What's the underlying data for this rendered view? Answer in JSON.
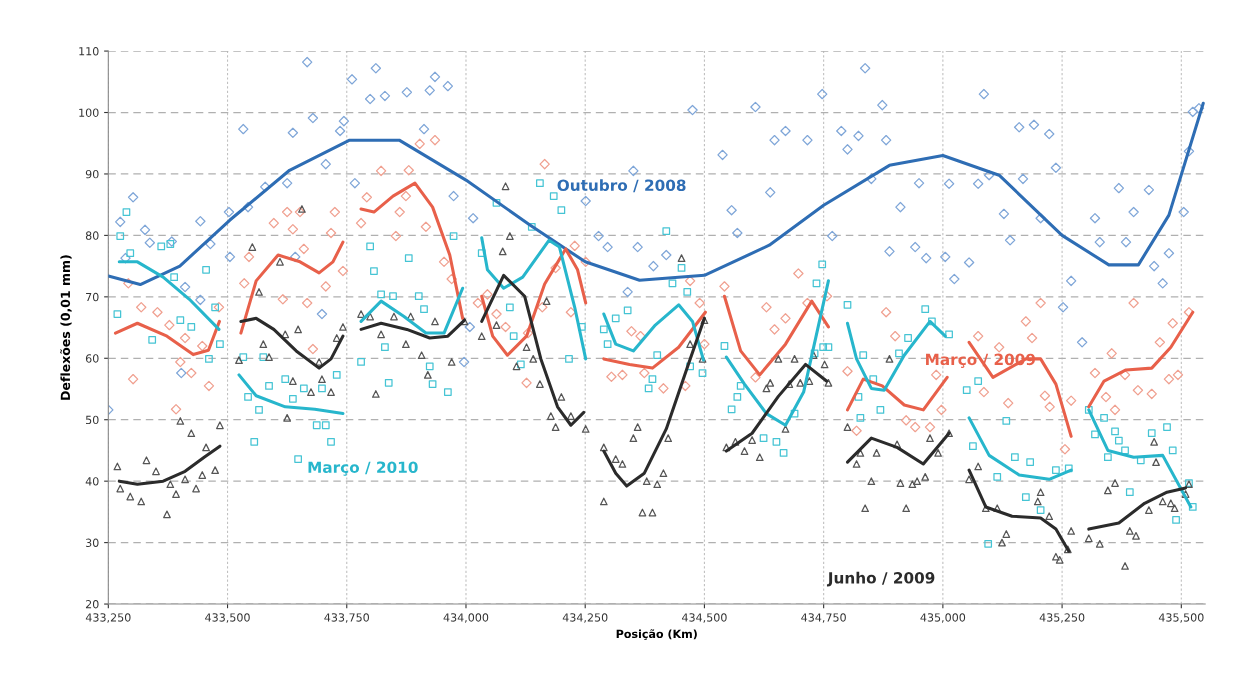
{
  "chart_data": {
    "type": "scatter",
    "xlabel": "Posição (Km)",
    "ylabel": "Deflexões (0,01 mm)",
    "xlim": [
      433250,
      435550
    ],
    "ylim": [
      20,
      110
    ],
    "xticks": [
      {
        "value": 433250,
        "label": "433,250"
      },
      {
        "value": 433500,
        "label": "433,500"
      },
      {
        "value": 433750,
        "label": "433,750"
      },
      {
        "value": 434000,
        "label": "434,000"
      },
      {
        "value": 434250,
        "label": "434,250"
      },
      {
        "value": 434500,
        "label": "434,500"
      },
      {
        "value": 434750,
        "label": "434,750"
      },
      {
        "value": 435000,
        "label": "435,000"
      },
      {
        "value": 435250,
        "label": "435,250"
      },
      {
        "value": 435500,
        "label": "435,500"
      }
    ],
    "yticks": [
      20,
      30,
      40,
      50,
      60,
      70,
      80,
      90,
      100,
      110
    ],
    "grid": true,
    "series": [
      {
        "marker": "diamond",
        "color": "#7fa6d8",
        "x": [
          433250,
          433275,
          433286,
          433302,
          433327,
          433337,
          433383,
          433411,
          433443,
          433464,
          433503,
          433533,
          433543,
          433505,
          433443,
          433403,
          433579,
          433625,
          433637,
          433642,
          433667,
          433679,
          433698,
          433706,
          433736,
          433744,
          433761,
          433767,
          433799,
          433811,
          433830,
          433876,
          433912,
          433924,
          433935,
          433962,
          433974,
          434008,
          434015,
          433996,
          434251,
          434278,
          434297,
          434339,
          434351,
          434360,
          434393,
          434420,
          434475,
          434538,
          434557,
          434569,
          434607,
          434638,
          434647,
          434670,
          434716,
          434747,
          434768,
          434787,
          434800,
          434823,
          434837,
          434850,
          434873,
          434881,
          434888,
          434911,
          434942,
          434950,
          434965,
          435005,
          435013,
          435024,
          435055,
          435074,
          435086,
          435097,
          435128,
          435141,
          435160,
          435168,
          435191,
          435205,
          435223,
          435237,
          435252,
          435269,
          435292,
          435319,
          435329,
          435369,
          435384,
          435400,
          435432,
          435443,
          435461,
          435474,
          435505,
          435516,
          435524,
          435537
        ],
        "values": [
          51.6,
          82.2,
          76.3,
          86.2,
          80.9,
          78.8,
          79,
          71.6,
          69.5,
          78.6,
          83.8,
          97.3,
          84.6,
          76.5,
          82.3,
          57.6,
          87.9,
          88.5,
          96.7,
          76.5,
          108.2,
          99.1,
          67.2,
          91.6,
          97,
          98.6,
          105.4,
          88.5,
          102.2,
          107.2,
          102.7,
          103.3,
          97.3,
          103.6,
          105.8,
          104.3,
          86.4,
          65.1,
          82.8,
          59.4,
          85.6,
          79.9,
          78.1,
          70.8,
          90.5,
          78.1,
          75,
          76.8,
          100.4,
          93.1,
          84.1,
          80.4,
          100.9,
          87,
          95.5,
          97,
          95.5,
          103,
          79.9,
          97,
          94,
          96.2,
          107.2,
          89.2,
          101.2,
          95.5,
          77.4,
          84.6,
          78.1,
          88.5,
          76.3,
          76.5,
          88.4,
          72.9,
          75.6,
          88.4,
          103,
          89.8,
          83.5,
          79.2,
          97.6,
          89.2,
          98,
          82.8,
          96.5,
          91,
          68.3,
          72.6,
          62.6,
          82.8,
          78.9,
          87.7,
          78.9,
          83.8,
          87.4,
          75,
          72.2,
          77.1,
          83.8,
          93.7,
          100.1,
          100.7
        ]
      },
      {
        "marker": "diamond",
        "color": "#f0a090",
        "x": [
          433292,
          433319,
          433353,
          433378,
          433302,
          433401,
          433424,
          433411,
          433447,
          433461,
          433392,
          433482,
          433535,
          433545,
          433597,
          433625,
          433652,
          433637,
          433660,
          433725,
          433717,
          433742,
          433706,
          433667,
          433616,
          433679,
          433780,
          433792,
          433822,
          433853,
          433861,
          433874,
          433880,
          433903,
          433935,
          433916,
          433954,
          433970,
          434025,
          434165,
          434228,
          434251,
          434188,
          434220,
          434160,
          434064,
          434045,
          434130,
          434083,
          434127,
          434305,
          434328,
          434347,
          434366,
          434374,
          434414,
          434460,
          434470,
          434490,
          434500,
          434542,
          434647,
          434670,
          434697,
          434716,
          434757,
          434607,
          434630,
          434800,
          434819,
          434881,
          434900,
          434923,
          434942,
          434973,
          434997,
          434986,
          435074,
          435118,
          435086,
          435137,
          435174,
          435187,
          435205,
          435214,
          435224,
          435269,
          435256,
          435319,
          435342,
          435361,
          435400,
          435354,
          435382,
          435409,
          435438,
          435455,
          435482,
          435474,
          435493,
          435516
        ],
        "values": [
          72.2,
          68.3,
          67.5,
          65.4,
          56.6,
          59.4,
          57.6,
          63.3,
          62,
          55.5,
          51.7,
          68.3,
          72.2,
          76.5,
          82,
          83.8,
          83.8,
          81,
          77.8,
          83.8,
          80.4,
          74.2,
          71.7,
          69,
          69.6,
          61.5,
          82,
          86.2,
          90.5,
          79.9,
          83.8,
          86.4,
          90.6,
          94.9,
          95.5,
          81.4,
          75.7,
          72.9,
          69,
          91.6,
          78.3,
          75.7,
          74.7,
          67.5,
          68.3,
          67.2,
          70.4,
          64.1,
          65.1,
          56,
          57,
          57.3,
          64.4,
          63.6,
          57.6,
          55.1,
          55.5,
          72.6,
          69,
          62.3,
          71.7,
          64.7,
          66.5,
          73.8,
          69,
          70.1,
          56.9,
          68.3,
          57.9,
          48.2,
          67.5,
          63.6,
          49.9,
          48.8,
          48.8,
          51.6,
          57.3,
          63.6,
          61.8,
          54.5,
          52.7,
          66,
          63.3,
          69,
          53.9,
          52.1,
          53.1,
          45.2,
          57.6,
          53.7,
          51.6,
          69,
          60.8,
          57.3,
          54.8,
          54.2,
          62.6,
          65.7,
          56.6,
          57.3,
          67.5
        ]
      },
      {
        "marker": "square",
        "color": "#45c4d4",
        "x": [
          433288,
          433275,
          433296,
          433269,
          433361,
          433380,
          433388,
          433401,
          433424,
          433455,
          433474,
          433342,
          433461,
          433484,
          433533,
          433575,
          433543,
          433566,
          433587,
          433621,
          433637,
          433660,
          433698,
          433687,
          433706,
          433717,
          433729,
          433556,
          433648,
          433799,
          433807,
          433880,
          433822,
          433847,
          433901,
          433912,
          433830,
          433780,
          433838,
          433924,
          433930,
          433962,
          433974,
          434155,
          434184,
          434200,
          434064,
          434138,
          434092,
          434033,
          434100,
          434115,
          434216,
          434243,
          434289,
          434297,
          434314,
          434339,
          434383,
          434391,
          434401,
          434420,
          434433,
          434452,
          434464,
          434470,
          434496,
          434542,
          434569,
          434557,
          434576,
          434624,
          434651,
          434666,
          434689,
          434731,
          434760,
          434747,
          434735,
          434800,
          434833,
          434823,
          434827,
          434869,
          434854,
          434908,
          434927,
          434963,
          434977,
          435013,
          434749,
          435050,
          435074,
          435063,
          435114,
          435095,
          435133,
          435151,
          435183,
          435174,
          435205,
          435237,
          435264,
          435306,
          435319,
          435338,
          435361,
          435369,
          435382,
          435346,
          435392,
          435415,
          435438,
          435470,
          435482,
          435489,
          435516,
          435524
        ],
        "values": [
          83.8,
          79.9,
          77.1,
          67.2,
          78.2,
          78.6,
          73.2,
          66.2,
          65.1,
          74.4,
          68.3,
          63,
          59.9,
          62.3,
          60.2,
          60.2,
          53.7,
          51.6,
          55.5,
          56.6,
          53.4,
          55.1,
          55.1,
          49.1,
          49.1,
          46.4,
          57.3,
          46.4,
          43.6,
          78.2,
          74.2,
          76.3,
          70.4,
          70.1,
          70.1,
          68,
          61.8,
          59.4,
          56,
          58.7,
          55.8,
          54.5,
          79.9,
          88.5,
          86.4,
          84.1,
          85.3,
          81.4,
          68.3,
          77.1,
          63.6,
          59,
          59.9,
          65.1,
          64.7,
          62.3,
          66.5,
          67.8,
          55.1,
          56.6,
          60.5,
          80.7,
          72.2,
          74.7,
          70.8,
          58.7,
          57.6,
          62,
          53.7,
          51.7,
          55.5,
          47,
          46.4,
          44.6,
          51,
          60.8,
          61.8,
          75.3,
          72.2,
          68.7,
          60.5,
          53.7,
          50.3,
          51.6,
          56.6,
          60.8,
          63.3,
          68,
          66,
          63.9,
          61.8,
          54.8,
          56.3,
          45.7,
          40.7,
          29.8,
          49.8,
          43.9,
          43.1,
          37.4,
          35.3,
          41.8,
          42.1,
          51.6,
          47.6,
          50.3,
          48.1,
          46.6,
          45,
          43.9,
          38.2,
          43.4,
          47.8,
          48.8,
          45,
          33.7,
          39.7,
          35.8
        ]
      },
      {
        "marker": "triangle",
        "color": "#555555",
        "x": [
          433269,
          433275,
          433296,
          433319,
          433330,
          433350,
          433373,
          433380,
          433392,
          433401,
          433424,
          433411,
          433434,
          433447,
          433455,
          433474,
          433484,
          433524,
          433552,
          433566,
          433575,
          433587,
          433610,
          433621,
          433648,
          433656,
          433637,
          433675,
          433698,
          433717,
          433625,
          433692,
          433729,
          433742,
          433780,
          433799,
          433822,
          433849,
          433874,
          433884,
          433907,
          433920,
          433935,
          433811,
          433970,
          433997,
          434083,
          434092,
          434077,
          434033,
          434064,
          434127,
          434106,
          434141,
          434169,
          434155,
          434178,
          434188,
          434200,
          434220,
          434251,
          434289,
          434314,
          434328,
          434289,
          434351,
          434360,
          434379,
          434401,
          434414,
          434370,
          434391,
          434424,
          434452,
          434470,
          434496,
          434500,
          434546,
          434565,
          434584,
          434600,
          434616,
          434630,
          434638,
          434655,
          434670,
          434678,
          434689,
          434701,
          434720,
          434729,
          434752,
          434760,
          434800,
          434819,
          434827,
          434861,
          434850,
          434837,
          434888,
          434904,
          434911,
          434923,
          434936,
          434946,
          434963,
          434973,
          434990,
          435013,
          435055,
          435074,
          435090,
          435114,
          435133,
          435124,
          435199,
          435205,
          435223,
          435237,
          435245,
          435269,
          435262,
          435306,
          435329,
          435346,
          435361,
          435382,
          435392,
          435405,
          435432,
          435443,
          435447,
          435461,
          435478,
          435486,
          435509,
          435516
        ],
        "values": [
          42.4,
          38.8,
          37.5,
          36.7,
          43.4,
          41.6,
          34.6,
          39.5,
          37.9,
          49.8,
          47.8,
          40.3,
          38.8,
          41,
          45.5,
          41.8,
          49.1,
          59.7,
          78.1,
          70.8,
          62.3,
          60.2,
          75.7,
          63.9,
          64.7,
          84.3,
          56.3,
          54.5,
          56.6,
          54.5,
          50.3,
          59.4,
          63.3,
          65.1,
          67.2,
          66.8,
          63.9,
          66.8,
          62.3,
          66.8,
          60.5,
          57.3,
          66,
          54.2,
          59.4,
          66,
          88,
          79.9,
          77.4,
          63.6,
          65.4,
          61.8,
          58.7,
          59.9,
          69.3,
          55.8,
          50.6,
          48.8,
          53.7,
          50.6,
          48.5,
          45.5,
          43.6,
          42.8,
          36.7,
          47,
          48.8,
          40,
          39.5,
          41.3,
          34.9,
          34.9,
          47,
          76.3,
          62.3,
          59.9,
          66.2,
          45.5,
          46.4,
          44.9,
          46.7,
          43.9,
          55.1,
          56,
          59.9,
          48.5,
          55.8,
          59.9,
          56,
          56.3,
          60.5,
          59,
          56,
          48.8,
          42.8,
          44.6,
          44.6,
          40,
          35.6,
          59.9,
          46,
          39.7,
          35.6,
          39.5,
          40,
          40.7,
          47,
          44.6,
          47.8,
          40.3,
          42.4,
          35.6,
          35.6,
          31.4,
          30,
          36.7,
          38.2,
          34.3,
          27.7,
          27.2,
          31.9,
          28.9,
          30.7,
          29.8,
          38.5,
          39.7,
          26.2,
          31.9,
          31.1,
          35.3,
          46.4,
          43.1,
          36.7,
          36.4,
          35.6,
          37.9,
          39.5
        ]
      },
      {
        "type": "line",
        "name": "Outubro / 2008",
        "color": "#2e6db4",
        "x": [
          433250,
          433317,
          433400,
          433505,
          433630,
          433756,
          433860,
          434000,
          434134,
          434250,
          434364,
          434500,
          434636,
          434750,
          434888,
          435000,
          435118,
          435250,
          435348,
          435410,
          435474,
          435546
        ],
        "values": [
          73.4,
          72,
          75,
          82.5,
          90.6,
          95.5,
          95.5,
          89,
          81.7,
          75.7,
          72.7,
          73.5,
          78.4,
          84.9,
          91.4,
          93,
          89.8,
          80,
          75.2,
          75.2,
          83.3,
          101.5
        ]
      },
      {
        "type": "line",
        "name": "Março / 2009",
        "color": "#e8604a",
        "x": [
          433265,
          433311,
          433373,
          433428,
          433460,
          433483,
          433500,
          433528,
          433560,
          433606,
          433652,
          433692,
          433721,
          433742,
          433760,
          433780,
          433807,
          433847,
          433893,
          433930,
          433966,
          433993,
          434010,
          434033,
          434056,
          434087,
          434127,
          434165,
          434209,
          434234,
          434251,
          434270,
          434289,
          434343,
          434391,
          434446,
          434502,
          434520,
          434542,
          434576,
          434616,
          434670,
          434725,
          434760,
          434780,
          434800,
          434833,
          434873,
          434919,
          434959,
          435009,
          435030,
          435055,
          435105,
          435174,
          435205,
          435237,
          435269,
          435290,
          435306,
          435338,
          435384,
          435438,
          435478,
          435524
        ],
        "values": [
          64.1,
          65.7,
          63.6,
          60.6,
          61.3,
          66,
          null,
          64.1,
          72.6,
          76.8,
          75.7,
          73.9,
          75.7,
          78.9,
          null,
          84.3,
          83.8,
          86.4,
          88.5,
          84.6,
          76.8,
          66.5,
          null,
          70.1,
          63.6,
          60.5,
          63.6,
          72.1,
          77.8,
          74.4,
          69,
          null,
          59.9,
          59,
          58.4,
          61.8,
          67.5,
          null,
          70.1,
          61.2,
          57.3,
          62.3,
          69.3,
          65.1,
          null,
          51.6,
          56.6,
          55.5,
          52.4,
          51.6,
          56.9,
          null,
          62.6,
          56.9,
          59.9,
          59.9,
          55.8,
          47.3,
          null,
          52.1,
          56.3,
          58.1,
          58.4,
          61.8,
          67.5
        ]
      },
      {
        "type": "line",
        "name": "Março / 2010",
        "color": "#27b6cc",
        "x": [
          433273,
          433311,
          433365,
          433420,
          433482,
          433500,
          433524,
          433560,
          433621,
          433683,
          433742,
          433760,
          433780,
          433822,
          433870,
          433916,
          433954,
          433993,
          434010,
          434033,
          434045,
          434079,
          434119,
          434174,
          434196,
          434228,
          434251,
          434270,
          434289,
          434314,
          434351,
          434397,
          434446,
          434475,
          434498,
          434520,
          434546,
          434584,
          434630,
          434670,
          434708,
          434760,
          434780,
          434800,
          434819,
          434850,
          434877,
          434919,
          434973,
          435005,
          435030,
          435055,
          435097,
          435160,
          435223,
          435269,
          435290,
          435306,
          435346,
          435400,
          435461,
          435520
        ],
        "values": [
          75.7,
          75.7,
          73.2,
          69.6,
          64.7,
          null,
          57.3,
          53.9,
          52.1,
          51.7,
          51,
          null,
          66,
          69.3,
          66.8,
          64.1,
          64.1,
          71.4,
          null,
          79.6,
          74.4,
          71.4,
          73.2,
          79.2,
          78.1,
          68.3,
          59.9,
          null,
          67.2,
          62.3,
          61.2,
          65.4,
          68.7,
          66,
          59.7,
          null,
          60.2,
          55.8,
          51,
          49.1,
          54.5,
          72.6,
          null,
          65.7,
          59.9,
          55.1,
          54.8,
          60.5,
          66,
          63.6,
          null,
          50.3,
          44.2,
          41,
          40.3,
          41.8,
          null,
          51.6,
          45,
          43.9,
          44.2,
          35.8
        ]
      },
      {
        "type": "line",
        "name": "Junho / 2009",
        "color": "#2b2b2b",
        "x": [
          433273,
          433311,
          433365,
          433411,
          433451,
          433484,
          433500,
          433528,
          433560,
          433597,
          433644,
          433692,
          433717,
          433742,
          433760,
          433780,
          433822,
          433876,
          433924,
          433962,
          433997,
          434010,
          434033,
          434079,
          434123,
          434157,
          434192,
          434220,
          434247,
          434270,
          434289,
          434314,
          434337,
          434374,
          434420,
          434468,
          434500,
          434520,
          434546,
          434600,
          434655,
          434712,
          434756,
          434780,
          434800,
          434850,
          434904,
          434959,
          435013,
          435030,
          435055,
          435090,
          435145,
          435205,
          435237,
          435264,
          435290,
          435306,
          435369,
          435423,
          435470,
          435509
        ],
        "values": [
          40,
          39.5,
          40,
          41.6,
          43.9,
          45.7,
          null,
          66,
          66.5,
          64.7,
          61.2,
          58.4,
          59.9,
          63.6,
          null,
          64.7,
          65.7,
          64.7,
          63.3,
          63.6,
          66.2,
          null,
          66,
          73.5,
          70.1,
          59.9,
          52.1,
          49.1,
          51.2,
          null,
          44.9,
          41.3,
          39.2,
          41.3,
          48.5,
          59.4,
          66.5,
          null,
          44.9,
          47.8,
          53.8,
          59,
          56.3,
          null,
          43.1,
          47,
          45.5,
          42.8,
          47.8,
          null,
          41.8,
          35.8,
          34.3,
          34,
          32.2,
          28.6,
          null,
          32.2,
          33.2,
          36.4,
          38.2,
          38.9
        ]
      }
    ]
  }
}
